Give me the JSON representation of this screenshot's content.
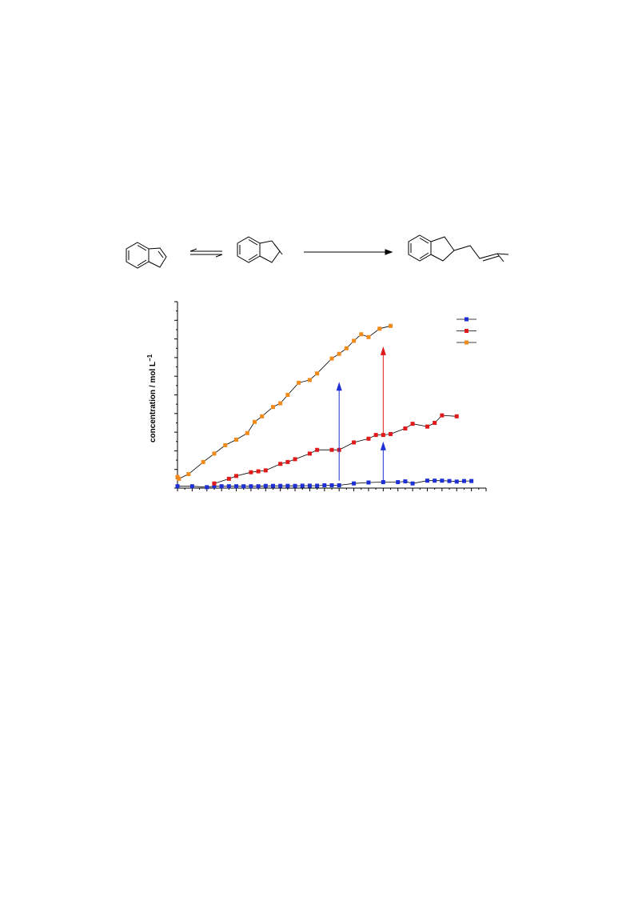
{
  "chart_data": {
    "type": "line",
    "title": "",
    "xlabel": "",
    "ylabel": "concentration / mol L",
    "ylabel_superscript": "−1",
    "legend_position": "top-right",
    "grid": false,
    "xlim": [
      0,
      42
    ],
    "ylim": [
      0,
      1.0
    ],
    "series": [
      {
        "color": "#1f2fd6",
        "marker": "square",
        "points": [
          [
            0,
            0.01
          ],
          [
            2,
            0.01
          ],
          [
            4,
            0.005
          ],
          [
            5,
            0.01
          ],
          [
            6,
            0.01
          ],
          [
            7,
            0.01
          ],
          [
            8,
            0.01
          ],
          [
            9,
            0.01
          ],
          [
            10,
            0.01
          ],
          [
            11,
            0.01
          ],
          [
            12,
            0.012
          ],
          [
            13,
            0.012
          ],
          [
            14,
            0.012
          ],
          [
            15,
            0.012
          ],
          [
            16,
            0.012
          ],
          [
            17,
            0.013
          ],
          [
            18,
            0.013
          ],
          [
            19,
            0.013
          ],
          [
            20,
            0.015
          ],
          [
            21,
            0.015
          ],
          [
            22,
            0.015
          ],
          [
            24,
            0.025
          ],
          [
            26,
            0.03
          ],
          [
            28,
            0.032
          ],
          [
            30,
            0.032
          ],
          [
            31,
            0.036
          ],
          [
            32,
            0.025
          ],
          [
            34,
            0.04
          ],
          [
            35,
            0.04
          ],
          [
            36,
            0.04
          ],
          [
            37,
            0.038
          ],
          [
            38,
            0.035
          ],
          [
            39,
            0.038
          ],
          [
            40,
            0.038
          ]
        ]
      },
      {
        "color": "#e01a1a",
        "marker": "square",
        "points": [
          [
            5,
            0.025
          ],
          [
            7,
            0.05
          ],
          [
            8,
            0.065
          ],
          [
            10,
            0.085
          ],
          [
            11,
            0.09
          ],
          [
            12,
            0.095
          ],
          [
            14,
            0.13
          ],
          [
            15,
            0.14
          ],
          [
            16,
            0.155
          ],
          [
            18,
            0.185
          ],
          [
            19,
            0.205
          ],
          [
            21,
            0.205
          ],
          [
            22,
            0.205
          ],
          [
            24,
            0.245
          ],
          [
            26,
            0.265
          ],
          [
            27,
            0.285
          ],
          [
            28,
            0.285
          ],
          [
            29,
            0.29
          ],
          [
            31,
            0.32
          ],
          [
            32,
            0.345
          ],
          [
            34,
            0.33
          ],
          [
            35,
            0.35
          ],
          [
            36,
            0.39
          ],
          [
            38,
            0.385
          ]
        ]
      },
      {
        "color": "#f08a1a",
        "marker": "square",
        "points": [
          [
            0,
            0.06
          ],
          [
            0.2,
            0.05
          ],
          [
            1.5,
            0.075
          ],
          [
            3.5,
            0.14
          ],
          [
            5,
            0.185
          ],
          [
            6.5,
            0.23
          ],
          [
            8,
            0.26
          ],
          [
            9.5,
            0.295
          ],
          [
            10.5,
            0.355
          ],
          [
            11.5,
            0.385
          ],
          [
            13,
            0.435
          ],
          [
            14,
            0.455
          ],
          [
            15,
            0.5
          ],
          [
            16.5,
            0.565
          ],
          [
            18,
            0.58
          ],
          [
            19,
            0.615
          ],
          [
            21,
            0.695
          ],
          [
            22,
            0.72
          ],
          [
            23,
            0.75
          ],
          [
            24,
            0.79
          ],
          [
            25,
            0.825
          ],
          [
            26,
            0.81
          ],
          [
            27.5,
            0.855
          ],
          [
            29,
            0.87
          ]
        ]
      }
    ],
    "annotations": [
      {
        "type": "arrow",
        "color": "#1f2fd6",
        "x": 22,
        "y_from": 0.04,
        "y_to": 0.57
      },
      {
        "type": "arrow",
        "color": "#e01a1a",
        "x": 28,
        "y_from": 0.29,
        "y_to": 0.76
      },
      {
        "type": "arrow",
        "color": "#1f2fd6",
        "x": 28,
        "y_from": 0.04,
        "y_to": 0.25
      }
    ]
  }
}
